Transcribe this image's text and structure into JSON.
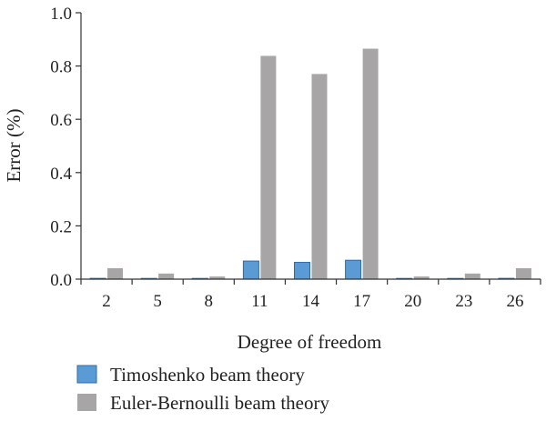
{
  "chart_data": {
    "type": "bar",
    "xlabel": "Degree of freedom",
    "ylabel": "Error (%)",
    "categories": [
      "2",
      "5",
      "8",
      "11",
      "14",
      "17",
      "20",
      "23",
      "26"
    ],
    "ylim": [
      0,
      1.0
    ],
    "yticks": [
      "0.0",
      "0.2",
      "0.4",
      "0.6",
      "0.8",
      "1.0"
    ],
    "grid": false,
    "legend_position": "bottom",
    "series": [
      {
        "name": "Timoshenko beam theory",
        "color": "#5b9bd5",
        "values": [
          0.003,
          0.002,
          0.001,
          0.068,
          0.063,
          0.071,
          0.001,
          0.002,
          0.003
        ]
      },
      {
        "name": "Euler-Bernoulli beam theory",
        "color": "#a8a5a6",
        "values": [
          0.041,
          0.021,
          0.01,
          0.838,
          0.77,
          0.865,
          0.01,
          0.021,
          0.041
        ]
      }
    ]
  }
}
